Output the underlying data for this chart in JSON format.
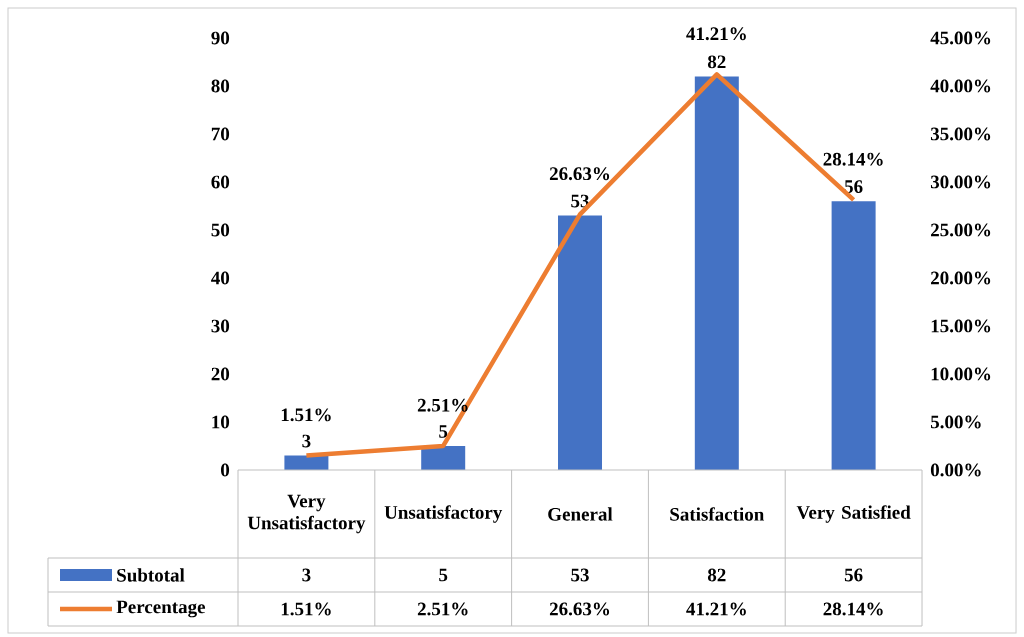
{
  "chart_data": {
    "type": "bar",
    "categories": [
      "Very Unsatisfactory",
      "Unsatisfactory",
      "General",
      "Satisfaction",
      "Very Satisfied"
    ],
    "series": [
      {
        "name": "Subtotal",
        "color": "#4472c4",
        "values": [
          3,
          5,
          53,
          82,
          56
        ],
        "value_labels": [
          "3",
          "5",
          "53",
          "82",
          "56"
        ]
      },
      {
        "name": "Percentage",
        "type": "line",
        "axis": "y2",
        "color": "#ed7d31",
        "values": [
          1.51,
          2.51,
          26.63,
          41.21,
          28.14
        ],
        "value_labels": [
          "1.51%",
          "2.51%",
          "26.63%",
          "41.21%",
          "28.14%"
        ]
      }
    ],
    "ylim": [
      0,
      90
    ],
    "yticks": [
      0,
      10,
      20,
      30,
      40,
      50,
      60,
      70,
      80,
      90
    ],
    "y2lim": [
      0,
      45
    ],
    "y2ticks": [
      {
        "value": 0,
        "label": "0.00%"
      },
      {
        "value": 5,
        "label": "5.00%"
      },
      {
        "value": 10,
        "label": "10.00%"
      },
      {
        "value": 15,
        "label": "15.00%"
      },
      {
        "value": 20,
        "label": "20.00%"
      },
      {
        "value": 25,
        "label": "25.00%"
      },
      {
        "value": 30,
        "label": "30.00%"
      },
      {
        "value": 35,
        "label": "35.00%"
      },
      {
        "value": 40,
        "label": "40.00%"
      },
      {
        "value": 45,
        "label": "45.00%"
      }
    ],
    "legend": "bottom"
  }
}
